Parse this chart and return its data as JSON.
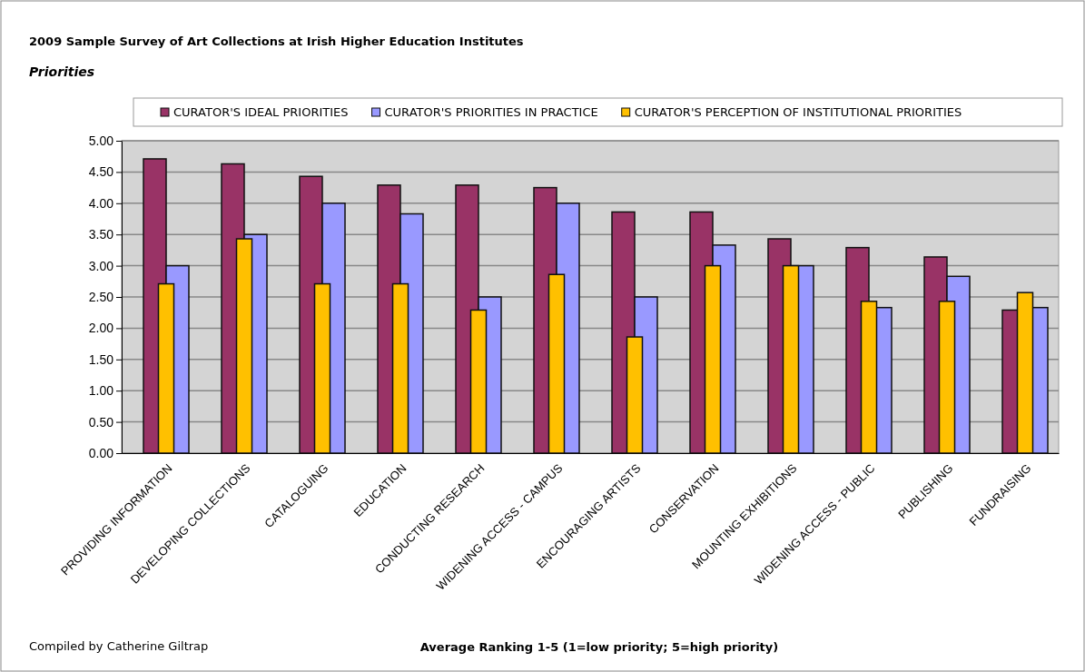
{
  "chart_data": {
    "type": "bar",
    "title": "2009 Sample Survey of Art Collections at Irish Higher Education Institutes",
    "subtitle": "Priorities",
    "xlabel": "Average Ranking 1-5 (1=low priority; 5=high priority)",
    "categories": [
      "PROVIDING INFORMATION",
      "DEVELOPING COLLECTIONS",
      "CATALOGUING",
      "EDUCATION",
      "CONDUCTING RESEARCH",
      "WIDENING ACCESS - CAMPUS",
      "ENCOURAGING ARTISTS",
      "CONSERVATION",
      "MOUNTING EXHIBITIONS",
      "WIDENING ACCESS - PUBLIC",
      "PUBLISHING",
      "FUNDRAISING"
    ],
    "series": [
      {
        "name": "CURATOR'S IDEAL PRIORITIES",
        "color": "#993366",
        "values": [
          4.71,
          4.63,
          4.43,
          4.29,
          4.29,
          4.25,
          3.86,
          3.86,
          3.43,
          3.29,
          3.14,
          2.29
        ]
      },
      {
        "name": "CURATOR'S PRIORITIES IN PRACTICE",
        "color": "#9999ff",
        "values": [
          3.0,
          3.5,
          4.0,
          3.83,
          2.5,
          4.0,
          2.5,
          3.33,
          3.0,
          2.33,
          2.83,
          2.33
        ]
      },
      {
        "name": "CURATOR'S PERCEPTION OF INSTITUTIONAL PRIORITIES",
        "color": "#ffc000",
        "values": [
          2.71,
          3.43,
          2.71,
          2.71,
          2.29,
          2.86,
          1.86,
          3.0,
          3.0,
          2.43,
          2.43,
          2.57
        ]
      }
    ],
    "ylim": [
      0,
      5
    ],
    "yticks": [
      {
        "value": 0,
        "label": "0.00"
      },
      {
        "value": 0.5,
        "label": "0.50"
      },
      {
        "value": 1,
        "label": "1.00"
      },
      {
        "value": 1.5,
        "label": "1.50"
      },
      {
        "value": 2,
        "label": "2.00"
      },
      {
        "value": 2.5,
        "label": "2.50"
      },
      {
        "value": 3,
        "label": "3.00"
      },
      {
        "value": 3.5,
        "label": "3.50"
      },
      {
        "value": 4,
        "label": "4.00"
      },
      {
        "value": 4.5,
        "label": "4.50"
      },
      {
        "value": 5,
        "label": "5.00"
      }
    ],
    "grid": "y",
    "legend": "top",
    "annotations": [
      "Compiled by Catherine Giltrap"
    ]
  }
}
